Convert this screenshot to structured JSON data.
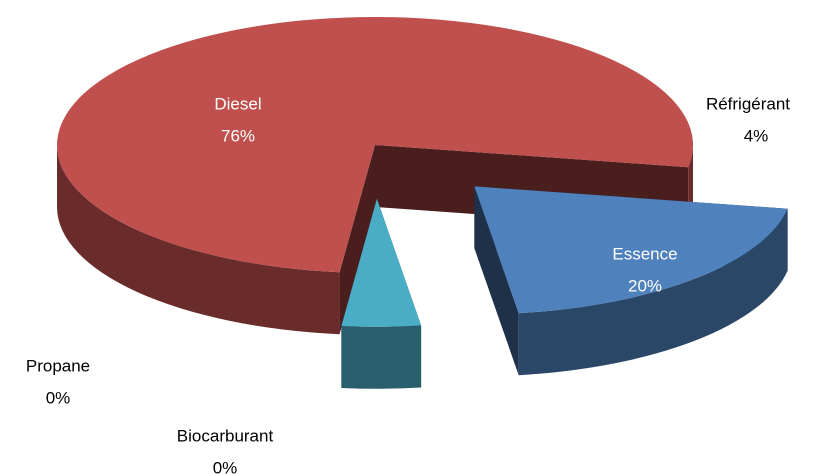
{
  "chart_data": {
    "type": "pie3d",
    "categories": [
      "Essence",
      "Réfrigérant",
      "Propane",
      "Biocarburant",
      "Diesel"
    ],
    "values": [
      20,
      4,
      0,
      0,
      76
    ],
    "value_labels": [
      "20%",
      "4%",
      "0%",
      "0%",
      "76%"
    ],
    "colors": [
      "#4f81bd",
      "#4bacc6",
      "#8064a2",
      "#9bbb59",
      "#c0504d"
    ]
  }
}
